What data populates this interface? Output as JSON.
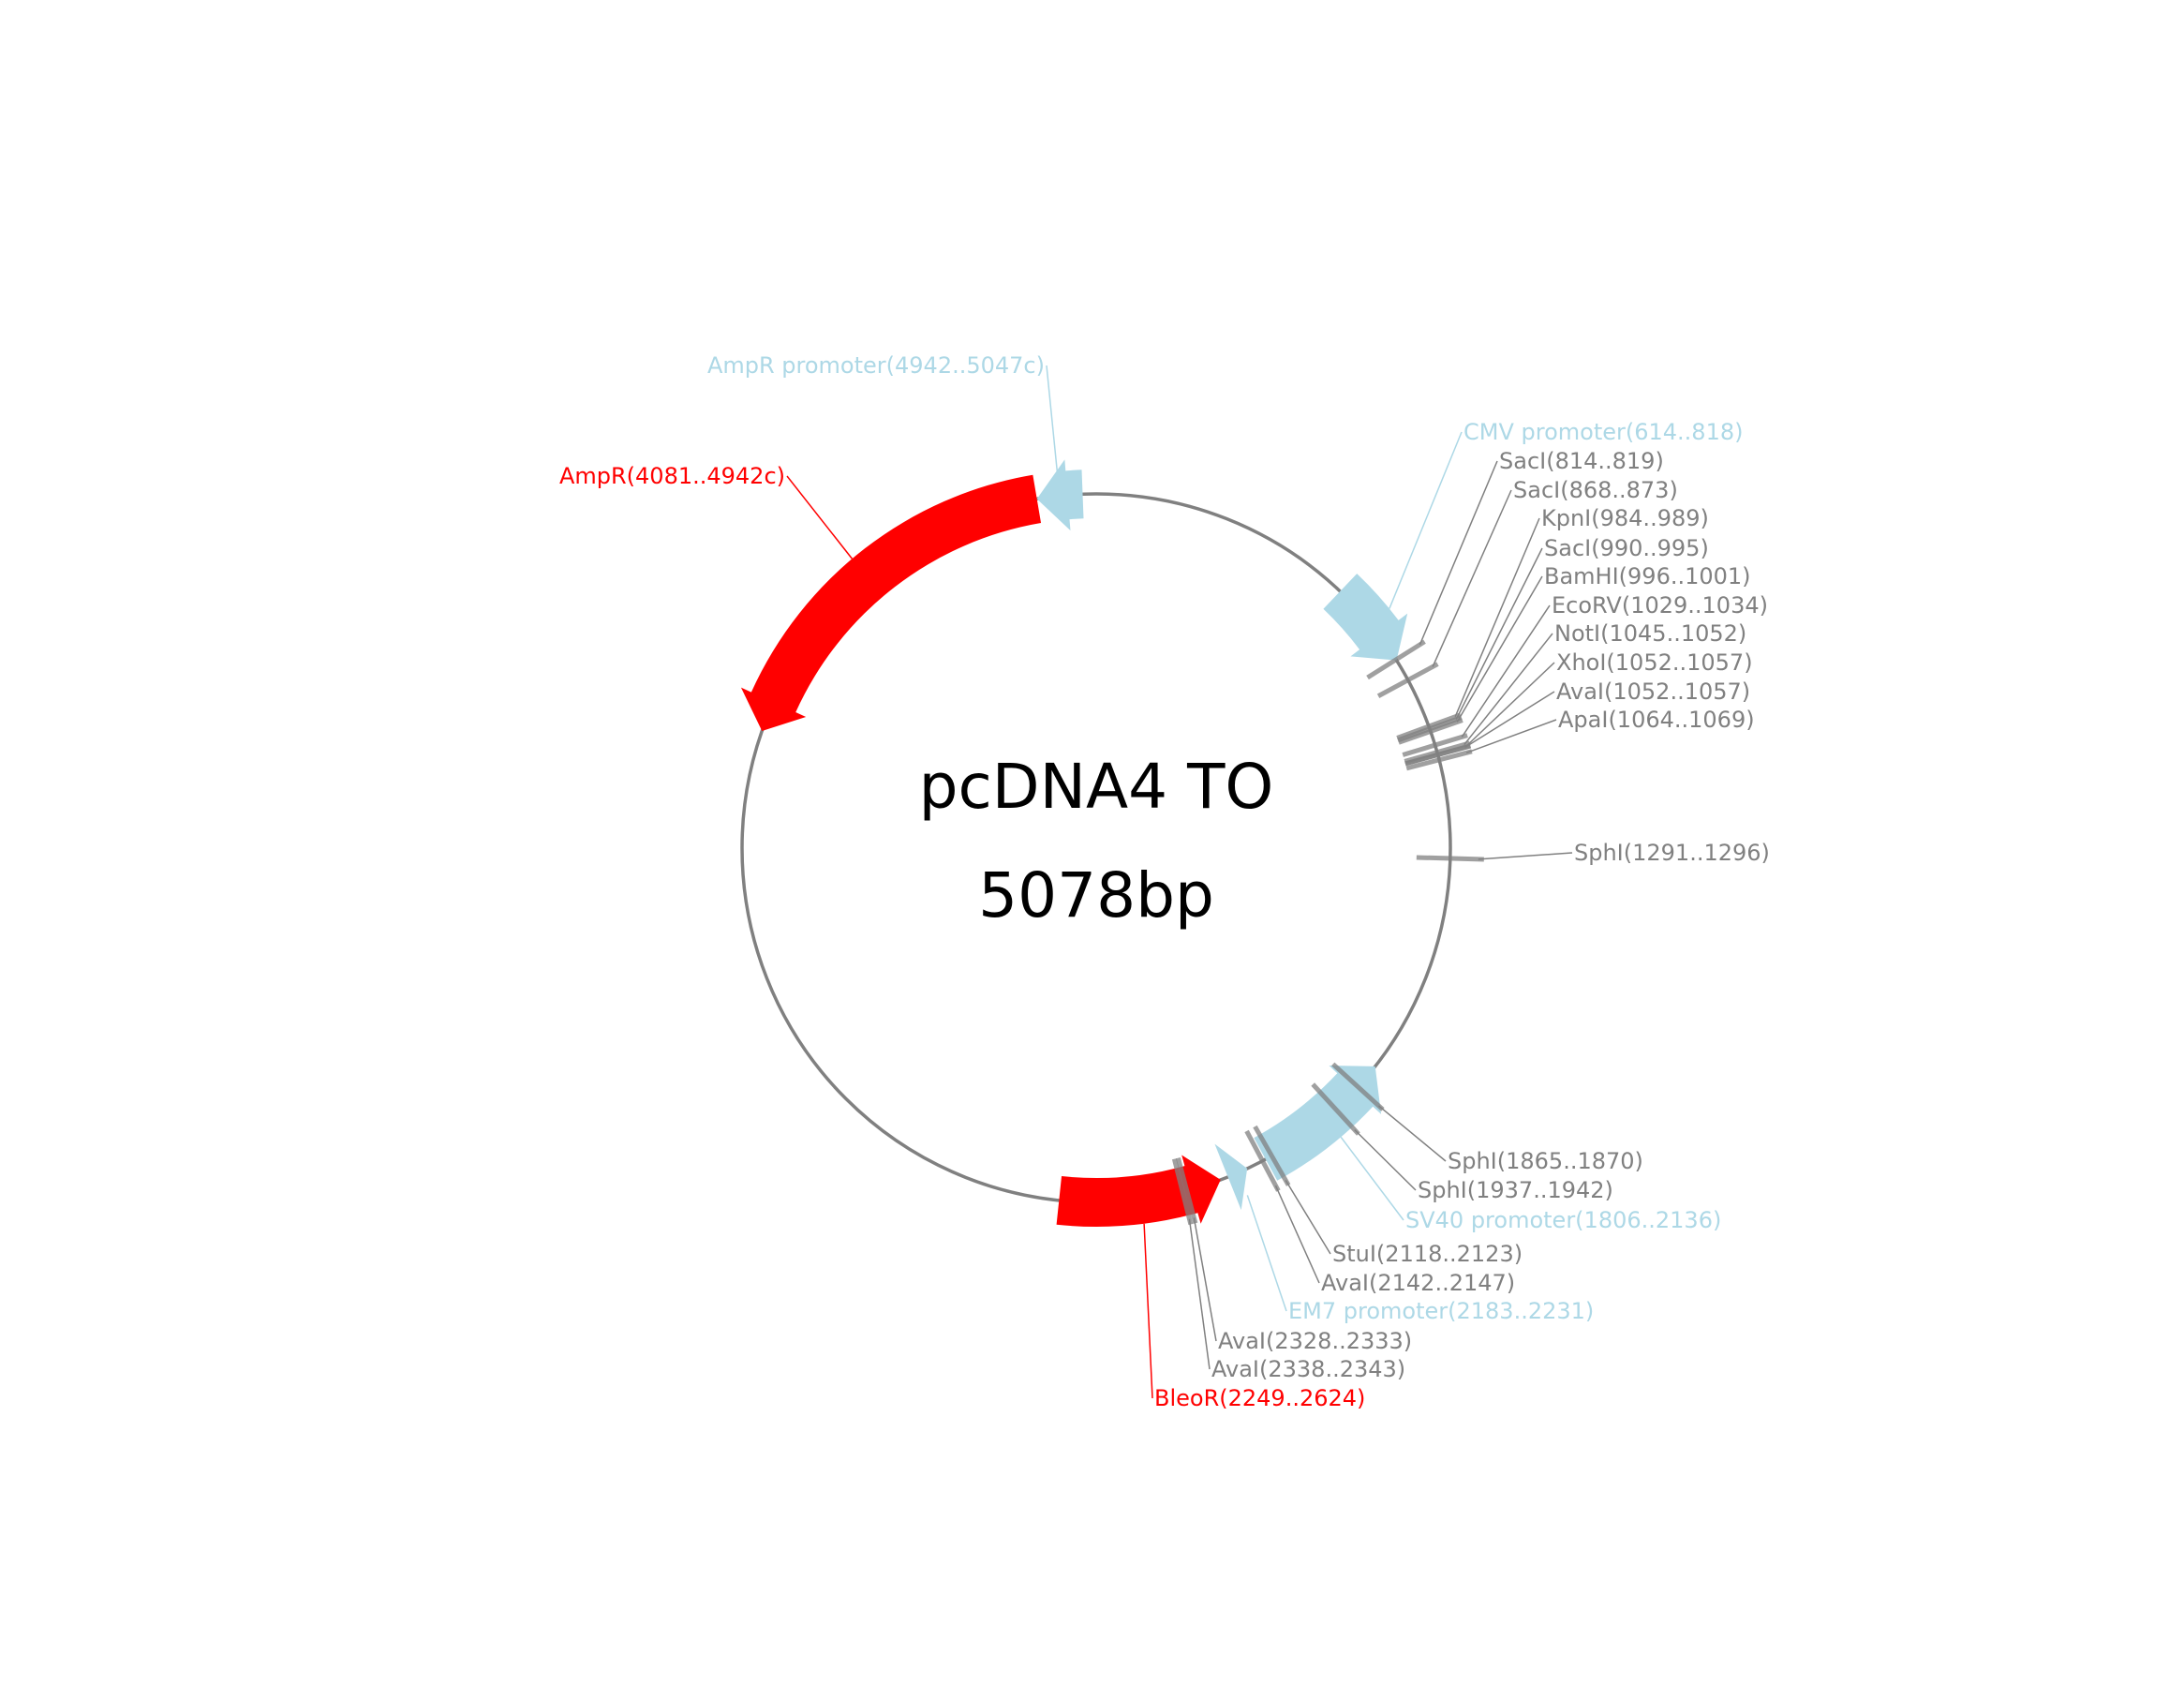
{
  "map": {
    "name": "pcDNA4 TO",
    "size_label": "5078bp",
    "total_bp": 5078
  },
  "colors": {
    "backbone": "#808080",
    "site": "#808080",
    "cds": "#ff0000",
    "promoter": "#add8e6"
  },
  "features": [
    {
      "name": "AmpR",
      "label": "AmpR(4081..4942c)",
      "start": 4081,
      "end": 4942,
      "strand": -1,
      "kind": "cds"
    },
    {
      "name": "AmpR promoter",
      "label": "AmpR promoter(4942..5047c)",
      "start": 4942,
      "end": 5047,
      "strand": -1,
      "kind": "promoter"
    },
    {
      "name": "CMV promoter",
      "label": "CMV promoter(614..818)",
      "start": 614,
      "end": 818,
      "strand": 1,
      "kind": "promoter"
    },
    {
      "name": "SV40 promoter",
      "label": "SV40 promoter(1806..2136)",
      "start": 1806,
      "end": 2136,
      "strand": -1,
      "kind": "promoter"
    },
    {
      "name": "EM7 promoter",
      "label": "EM7 promoter(2183..2231)",
      "start": 2183,
      "end": 2231,
      "strand": -1,
      "kind": "promoter"
    },
    {
      "name": "BleoR",
      "label": "BleoR(2249..2624)",
      "start": 2249,
      "end": 2624,
      "strand": -1,
      "kind": "cds"
    }
  ],
  "sites": [
    {
      "label": "SacI(814..819)",
      "pos": 816
    },
    {
      "label": "SacI(868..873)",
      "pos": 870
    },
    {
      "label": "KpnI(984..989)",
      "pos": 986
    },
    {
      "label": "SacI(990..995)",
      "pos": 992
    },
    {
      "label": "BamHI(996..1001)",
      "pos": 998
    },
    {
      "label": "EcoRV(1029..1034)",
      "pos": 1031
    },
    {
      "label": "NotI(1045..1052)",
      "pos": 1048
    },
    {
      "label": "XhoI(1052..1057)",
      "pos": 1054
    },
    {
      "label": "AvaI(1052..1057)",
      "pos": 1054
    },
    {
      "label": "ApaI(1064..1069)",
      "pos": 1066
    },
    {
      "label": "SphI(1291..1296)",
      "pos": 1293
    },
    {
      "label": "SphI(1865..1870)",
      "pos": 1867
    },
    {
      "label": "SphI(1937..1942)",
      "pos": 1939
    },
    {
      "label": "StuI(2118..2123)",
      "pos": 2120
    },
    {
      "label": "AvaI(2142..2147)",
      "pos": 2144
    },
    {
      "label": "AvaI(2328..2333)",
      "pos": 2330
    },
    {
      "label": "AvaI(2338..2343)",
      "pos": 2340
    }
  ]
}
